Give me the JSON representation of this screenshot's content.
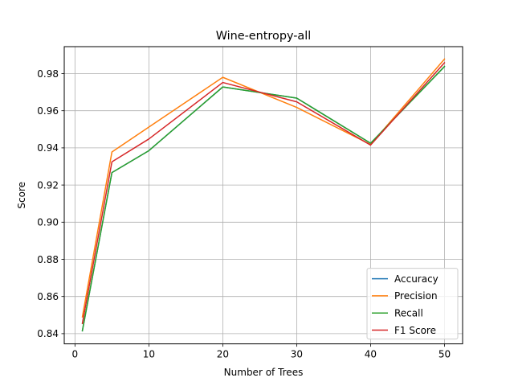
{
  "chart_data": {
    "type": "line",
    "title": "Wine-entropy-all",
    "xlabel": "Number of Trees",
    "ylabel": "Score",
    "xlim": [
      -1.45,
      52.45
    ],
    "ylim": [
      0.8345,
      0.9945
    ],
    "xticks": [
      0,
      10,
      20,
      30,
      40,
      50
    ],
    "yticks": [
      0.84,
      0.86,
      0.88,
      0.9,
      0.92,
      0.94,
      0.96,
      0.98
    ],
    "ytick_labels": [
      "0.84",
      "0.86",
      "0.88",
      "0.90",
      "0.92",
      "0.94",
      "0.96",
      "0.98"
    ],
    "grid": true,
    "legend_position": "lower-right",
    "x": [
      1,
      5,
      10,
      20,
      30,
      40,
      50
    ],
    "series": [
      {
        "name": "Accuracy",
        "color": "#1f77b4",
        "values": [
          0.8415,
          0.9267,
          0.9385,
          0.9728,
          0.9668,
          0.9425,
          0.9838
        ]
      },
      {
        "name": "Precision",
        "color": "#ff7f0e",
        "values": [
          0.849,
          0.9378,
          0.9512,
          0.978,
          0.9618,
          0.9418,
          0.9878
        ]
      },
      {
        "name": "Recall",
        "color": "#2ca02c",
        "values": [
          0.8415,
          0.9267,
          0.9385,
          0.9728,
          0.9668,
          0.9425,
          0.9838
        ]
      },
      {
        "name": "F1 Score",
        "color": "#d62728",
        "values": [
          0.8455,
          0.9325,
          0.9448,
          0.9752,
          0.9648,
          0.9415,
          0.9858
        ]
      }
    ]
  }
}
